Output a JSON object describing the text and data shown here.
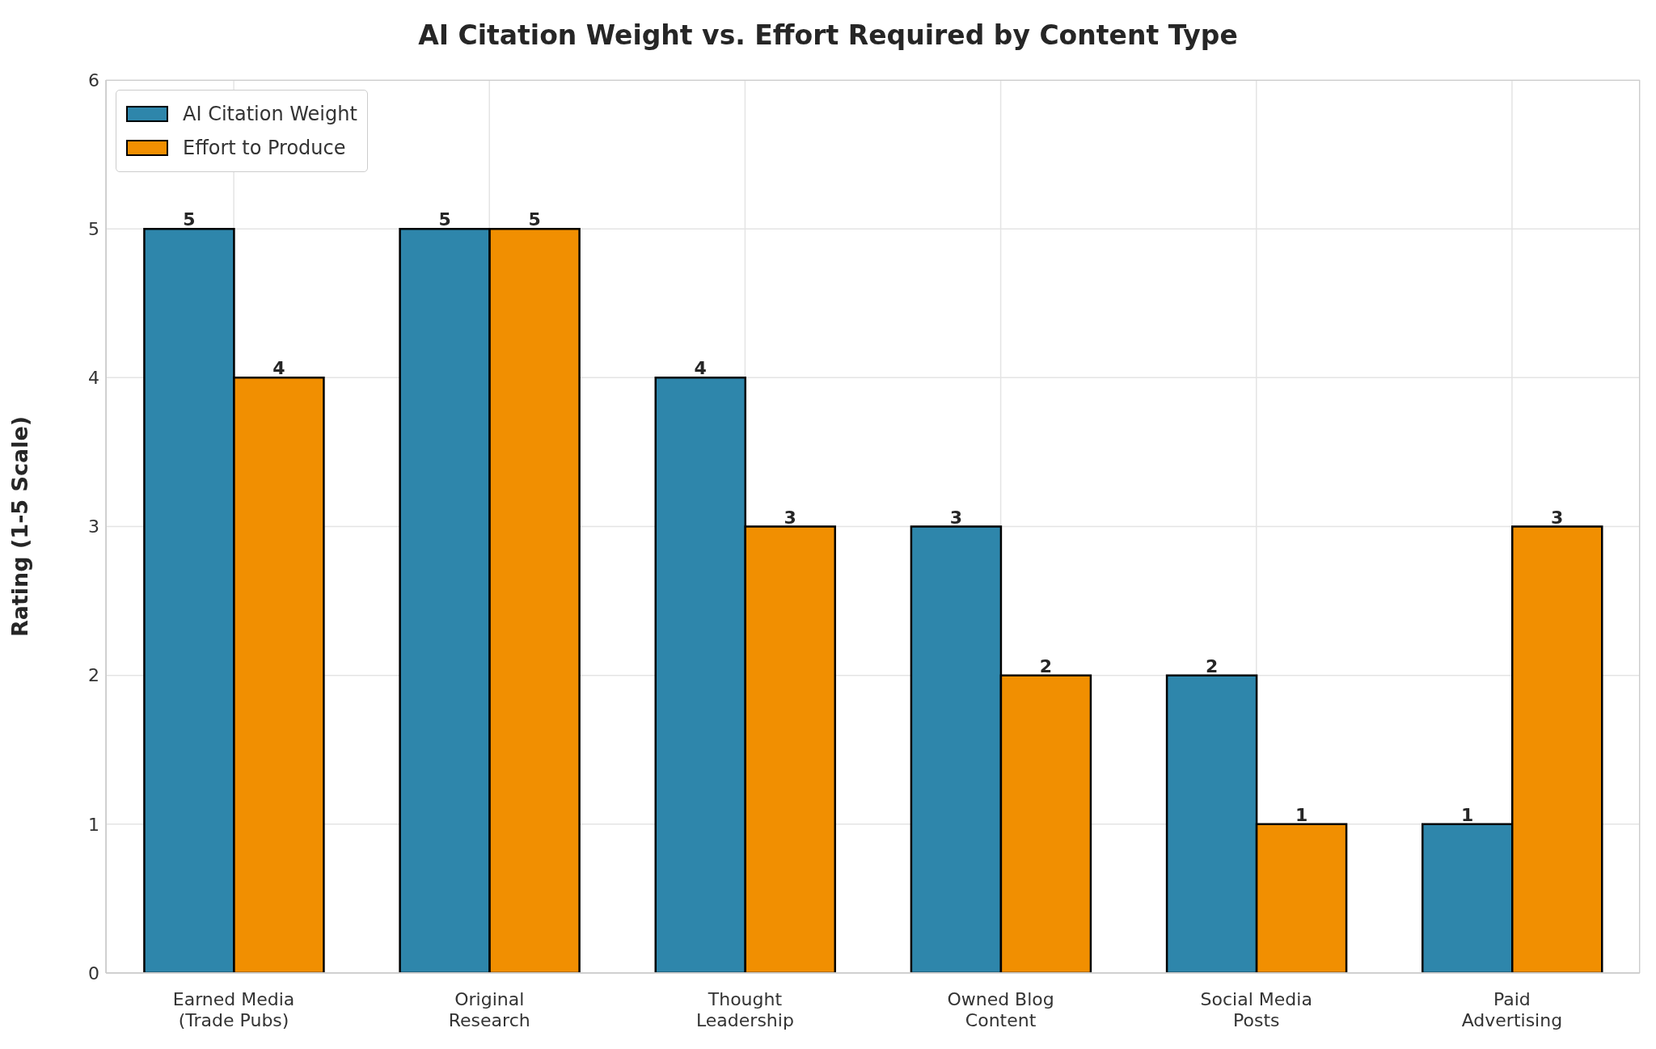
{
  "chart_data": {
    "type": "bar",
    "title": "AI Citation Weight vs. Effort Required by Content Type",
    "ylabel": "Rating (1-5 Scale)",
    "categories": [
      "Earned Media\n(Trade Pubs)",
      "Original\nResearch",
      "Thought\nLeadership",
      "Owned Blog\nContent",
      "Social Media\nPosts",
      "Paid\nAdvertising"
    ],
    "series": [
      {
        "name": "AI Citation Weight",
        "color": "#2e86ab",
        "values": [
          5,
          5,
          4,
          3,
          2,
          1
        ]
      },
      {
        "name": "Effort to Produce",
        "color": "#f18f01",
        "values": [
          4,
          5,
          3,
          2,
          1,
          3
        ]
      }
    ],
    "ylim": [
      0,
      6
    ],
    "yticks": [
      0,
      1,
      2,
      3,
      4,
      5,
      6
    ],
    "grid": true,
    "legend": "top left",
    "data_labels": true
  }
}
